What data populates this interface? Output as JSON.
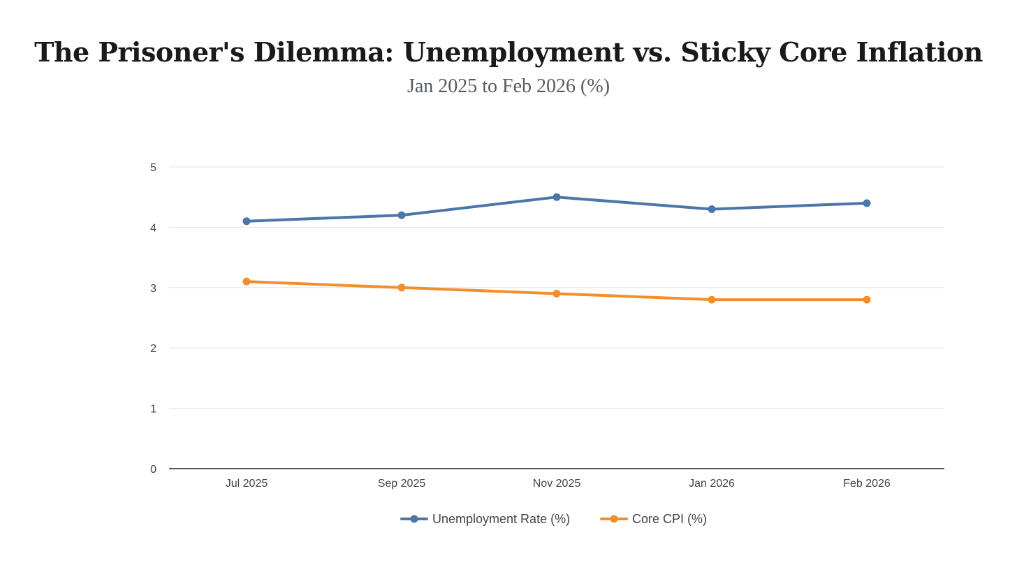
{
  "chart_data": {
    "type": "line",
    "title": "The Prisoner's Dilemma: Unemployment vs. Sticky Core Inflation",
    "subtitle": "Jan 2025 to Feb 2026 (%)",
    "xlabel": "",
    "ylabel": "",
    "categories": [
      "Jul 2025",
      "Sep 2025",
      "Nov 2025",
      "Jan 2026",
      "Feb 2026"
    ],
    "ylim": [
      0,
      5
    ],
    "yticks": [
      "0",
      "1",
      "2",
      "3",
      "4",
      "5"
    ],
    "grid": true,
    "legend_position": "bottom-center",
    "series": [
      {
        "name": "Unemployment Rate (%)",
        "color": "#4a76a8",
        "values": [
          4.1,
          4.2,
          4.5,
          4.3,
          4.4
        ]
      },
      {
        "name": "Core CPI (%)",
        "color": "#f28e2b",
        "values": [
          3.1,
          3.0,
          2.9,
          2.8,
          2.8
        ]
      }
    ]
  }
}
